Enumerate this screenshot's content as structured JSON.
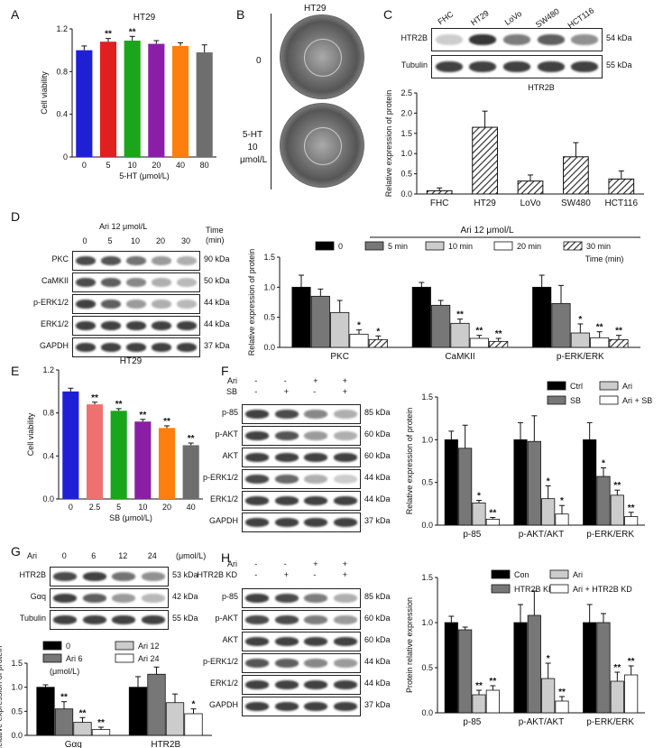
{
  "panels": {
    "A": {
      "label": "A",
      "chart_data": {
        "type": "bar",
        "title": "HT29",
        "xlabel": "5-HT (μmol/L)",
        "ylabel": "Cell viability",
        "categories": [
          "0",
          "5",
          "10",
          "20",
          "40",
          "80"
        ],
        "values": [
          1.0,
          1.08,
          1.09,
          1.06,
          1.04,
          0.98
        ],
        "errors": [
          0.04,
          0.03,
          0.04,
          0.03,
          0.03,
          0.07
        ],
        "significance": [
          "",
          "**",
          "**",
          "",
          "",
          ""
        ],
        "colors": [
          "#1f1fd6",
          "#e02020",
          "#1aa61a",
          "#8a1fa6",
          "#ff7f0e",
          "#6e6e6e"
        ],
        "ylim": [
          0,
          1.2
        ],
        "yticks": [
          "0",
          "0.4",
          "0.8",
          "1.2"
        ]
      }
    },
    "B": {
      "label": "B",
      "title": "HT29",
      "row_top": "0",
      "row_bottom_lines": [
        "5-HT",
        "10",
        "μmol/L"
      ]
    },
    "C": {
      "label": "C",
      "blot": {
        "lanes": [
          "FHC",
          "HT29",
          "LoVo",
          "SW480",
          "HCT116"
        ],
        "rows": [
          {
            "name": "HTR2B",
            "kda": "54 kDa",
            "intensity": [
              0.15,
              0.9,
              0.55,
              0.7,
              0.45
            ]
          },
          {
            "name": "Tubulin",
            "kda": "55 kDa",
            "intensity": [
              0.85,
              0.85,
              0.85,
              0.85,
              0.85
            ]
          }
        ]
      },
      "chart_data": {
        "type": "bar",
        "title": "HTR2B",
        "xlabel": "",
        "ylabel": "Relative expression of protein",
        "categories": [
          "FHC",
          "HT29",
          "LoVo",
          "SW480",
          "HCT116"
        ],
        "values": [
          0.08,
          1.65,
          0.32,
          0.92,
          0.37
        ],
        "errors": [
          0.07,
          0.4,
          0.15,
          0.35,
          0.2
        ],
        "ylim": [
          0,
          2.5
        ],
        "yticks": [
          "0.0",
          "0.5",
          "1.0",
          "1.5",
          "2.0",
          "2.5"
        ]
      }
    },
    "D": {
      "label": "D",
      "blot": {
        "treatment": "Ari 12 μmol/L",
        "time_label": "Time",
        "time_unit": "(min)",
        "lanes": [
          "0",
          "5",
          "10",
          "20",
          "30"
        ],
        "rows": [
          {
            "name": "PKC",
            "kda": "90 kDa",
            "intensity": [
              0.8,
              0.75,
              0.6,
              0.4,
              0.3
            ]
          },
          {
            "name": "CaMKII",
            "kda": "50 kDa",
            "intensity": [
              0.8,
              0.7,
              0.5,
              0.3,
              0.25
            ]
          },
          {
            "name": "p-ERK1/2",
            "kda": "44 kDa",
            "intensity": [
              0.85,
              0.7,
              0.4,
              0.3,
              0.25
            ]
          },
          {
            "name": "ERK1/2",
            "kda": "44 kDa",
            "intensity": [
              0.85,
              0.85,
              0.85,
              0.85,
              0.85
            ]
          },
          {
            "name": "GAPDH",
            "kda": "37 kDa",
            "intensity": [
              0.85,
              0.85,
              0.85,
              0.85,
              0.85
            ]
          }
        ]
      },
      "chart_data": {
        "type": "bar",
        "title": "Ari 12 μmol/L",
        "time_label": "Time (min)",
        "ylabel": "Relative expression of protein",
        "categories": [
          "PKC",
          "CaMKII",
          "p-ERK/ERK"
        ],
        "series": [
          {
            "name": "0",
            "values": [
              1.0,
              1.0,
              1.0
            ],
            "errors": [
              0.2,
              0.08,
              0.2
            ],
            "sig": [
              "",
              "",
              ""
            ],
            "color": "#000000",
            "hatch": false
          },
          {
            "name": "5 min",
            "values": [
              0.85,
              0.7,
              0.73
            ],
            "errors": [
              0.12,
              0.08,
              0.3
            ],
            "sig": [
              "",
              "",
              ""
            ],
            "color": "#777777",
            "hatch": false
          },
          {
            "name": "10 min",
            "values": [
              0.58,
              0.4,
              0.24
            ],
            "errors": [
              0.2,
              0.07,
              0.15
            ],
            "sig": [
              "",
              "**",
              "*"
            ],
            "color": "#cccccc",
            "hatch": false
          },
          {
            "name": "20 min",
            "values": [
              0.22,
              0.15,
              0.16
            ],
            "errors": [
              0.07,
              0.05,
              0.1
            ],
            "sig": [
              "*",
              "**",
              "**"
            ],
            "color": "#ffffff",
            "hatch": false
          },
          {
            "name": "30 min",
            "values": [
              0.13,
              0.1,
              0.13
            ],
            "errors": [
              0.06,
              0.05,
              0.07
            ],
            "sig": [
              "*",
              "**",
              "**"
            ],
            "color": "#444444",
            "hatch": true
          }
        ],
        "ylim": [
          0,
          1.5
        ],
        "yticks": [
          "0.0",
          "0.5",
          "1.0",
          "1.5"
        ]
      }
    },
    "E": {
      "label": "E",
      "chart_data": {
        "type": "bar",
        "title": "HT29",
        "xlabel": "SB (μmol/L)",
        "ylabel": "Cell viability",
        "categories": [
          "0",
          "2.5",
          "5",
          "10",
          "20",
          "40"
        ],
        "values": [
          1.0,
          0.88,
          0.82,
          0.72,
          0.66,
          0.5
        ],
        "errors": [
          0.03,
          0.02,
          0.02,
          0.02,
          0.02,
          0.02
        ],
        "significance": [
          "",
          "**",
          "**",
          "**",
          "**",
          "**"
        ],
        "colors": [
          "#1f1fd6",
          "#f07070",
          "#1aa61a",
          "#8a1fa6",
          "#ff7f0e",
          "#6e6e6e"
        ],
        "ylim": [
          0,
          1.2
        ],
        "yticks": [
          "0.0",
          "0.4",
          "0.8",
          "1.2"
        ]
      }
    },
    "F": {
      "label": "F",
      "blot": {
        "conditions": [
          {
            "name": "Ari",
            "values": [
              "-",
              "-",
              "+",
              "+"
            ]
          },
          {
            "name": "SB",
            "values": [
              "-",
              "+",
              "-",
              "+"
            ]
          }
        ],
        "rows": [
          {
            "name": "p-85",
            "kda": "85 kDa",
            "intensity": [
              0.85,
              0.8,
              0.5,
              0.3
            ]
          },
          {
            "name": "p-AKT",
            "kda": "60 kDa",
            "intensity": [
              0.85,
              0.75,
              0.4,
              0.3
            ]
          },
          {
            "name": "AKT",
            "kda": "60 kDa",
            "intensity": [
              0.85,
              0.85,
              0.85,
              0.85
            ]
          },
          {
            "name": "p-ERK1/2",
            "kda": "44 kDa",
            "intensity": [
              0.8,
              0.65,
              0.3,
              0.15
            ]
          },
          {
            "name": "ERK1/2",
            "kda": "44 kDa",
            "intensity": [
              0.85,
              0.85,
              0.85,
              0.85
            ]
          },
          {
            "name": "GAPDH",
            "kda": "37 kDa",
            "intensity": [
              0.85,
              0.85,
              0.85,
              0.85
            ]
          }
        ]
      },
      "chart_data": {
        "type": "bar",
        "ylabel": "Relative expression of protein",
        "categories": [
          "p-85",
          "p-AKT/AKT",
          "p-ERK/ERK"
        ],
        "series": [
          {
            "name": "Ctrl",
            "values": [
              1.0,
              1.0,
              1.0
            ],
            "errors": [
              0.1,
              0.2,
              0.2
            ],
            "sig": [
              "",
              "",
              ""
            ],
            "color": "#000000"
          },
          {
            "name": "SB",
            "values": [
              0.9,
              0.98,
              0.57
            ],
            "errors": [
              0.27,
              0.3,
              0.1
            ],
            "sig": [
              "",
              "",
              "*"
            ],
            "color": "#777777"
          },
          {
            "name": "Ari",
            "values": [
              0.26,
              0.31,
              0.35
            ],
            "errors": [
              0.03,
              0.15,
              0.06
            ],
            "sig": [
              "*",
              "*",
              "**"
            ],
            "color": "#cccccc"
          },
          {
            "name": "Ari + SB",
            "values": [
              0.07,
              0.13,
              0.1
            ],
            "errors": [
              0.02,
              0.1,
              0.05
            ],
            "sig": [
              "**",
              "*",
              "**"
            ],
            "color": "#ffffff"
          }
        ],
        "ylim": [
          0,
          1.5
        ],
        "yticks": [
          "0.0",
          "0.5",
          "1.0",
          "1.5"
        ]
      }
    },
    "G": {
      "label": "G",
      "blot": {
        "treatment": "Ari",
        "unit": "(μmol/L)",
        "lanes": [
          "0",
          "6",
          "12",
          "24"
        ],
        "rows": [
          {
            "name": "HTR2B",
            "kda": "53 kDa",
            "intensity": [
              0.8,
              0.85,
              0.6,
              0.45
            ]
          },
          {
            "name": "Gαq",
            "kda": "42 kDa",
            "intensity": [
              0.85,
              0.7,
              0.4,
              0.25
            ]
          },
          {
            "name": "Tubulin",
            "kda": "55 kDa",
            "intensity": [
              0.85,
              0.85,
              0.85,
              0.85
            ]
          }
        ]
      },
      "chart_data": {
        "type": "bar",
        "ylabel": "Relative expression of protein",
        "legend_unit": "(μmol/L)",
        "categories": [
          "Gαq",
          "HTR2B"
        ],
        "series": [
          {
            "name": "0",
            "values": [
              1.0,
              1.0
            ],
            "errors": [
              0.05,
              0.22
            ],
            "sig": [
              "",
              ""
            ],
            "color": "#000000"
          },
          {
            "name": "Ari 6",
            "values": [
              0.55,
              1.27
            ],
            "errors": [
              0.15,
              0.15
            ],
            "sig": [
              "**",
              ""
            ],
            "color": "#777777"
          },
          {
            "name": "Ari 12",
            "values": [
              0.27,
              0.68
            ],
            "errors": [
              0.1,
              0.18
            ],
            "sig": [
              "**",
              ""
            ],
            "color": "#cccccc"
          },
          {
            "name": "Ari 24",
            "values": [
              0.12,
              0.45
            ],
            "errors": [
              0.05,
              0.1
            ],
            "sig": [
              "**",
              "*"
            ],
            "color": "#ffffff"
          }
        ],
        "ylim": [
          0,
          1.5
        ],
        "yticks": [
          "0.0",
          "0.5",
          "1.0",
          "1.5"
        ]
      }
    },
    "H": {
      "label": "H",
      "blot": {
        "conditions": [
          {
            "name": "Ari",
            "values": [
              "-",
              "-",
              "+",
              "+"
            ]
          },
          {
            "name": "HTR2B KD",
            "values": [
              "-",
              "+",
              "-",
              "+"
            ]
          }
        ],
        "rows": [
          {
            "name": "p-85",
            "kda": "85 kDa",
            "intensity": [
              0.85,
              0.8,
              0.55,
              0.3
            ]
          },
          {
            "name": "p-AKT",
            "kda": "60 kDa",
            "intensity": [
              0.8,
              0.8,
              0.55,
              0.4
            ]
          },
          {
            "name": "AKT",
            "kda": "60 kDa",
            "intensity": [
              0.85,
              0.85,
              0.85,
              0.85
            ]
          },
          {
            "name": "p-ERK1/2",
            "kda": "44 kDa",
            "intensity": [
              0.75,
              0.7,
              0.5,
              0.4
            ]
          },
          {
            "name": "ERK1/2",
            "kda": "44 kDa",
            "intensity": [
              0.85,
              0.85,
              0.85,
              0.85
            ]
          },
          {
            "name": "GAPDH",
            "kda": "37 kDa",
            "intensity": [
              0.85,
              0.85,
              0.85,
              0.85
            ]
          }
        ]
      },
      "chart_data": {
        "type": "bar",
        "ylabel": "Protein relative expression",
        "categories": [
          "p-85",
          "p-AKT/AKT",
          "p-ERK/ERK"
        ],
        "series": [
          {
            "name": "Con",
            "values": [
              1.0,
              1.0,
              1.0
            ],
            "errors": [
              0.07,
              0.2,
              0.2
            ],
            "sig": [
              "",
              "",
              ""
            ],
            "color": "#000000"
          },
          {
            "name": "HTR2B KD",
            "values": [
              0.92,
              1.08,
              1.0
            ],
            "errors": [
              0.03,
              0.27,
              0.1
            ],
            "sig": [
              "",
              "",
              ""
            ],
            "color": "#777777"
          },
          {
            "name": "Ari",
            "values": [
              0.2,
              0.38,
              0.35
            ],
            "errors": [
              0.05,
              0.17,
              0.1
            ],
            "sig": [
              "**",
              "*",
              "**"
            ],
            "color": "#cccccc"
          },
          {
            "name": "Ari + HTR2B KD",
            "values": [
              0.25,
              0.13,
              0.42
            ],
            "errors": [
              0.05,
              0.05,
              0.1
            ],
            "sig": [
              "**",
              "**",
              "**"
            ],
            "color": "#ffffff"
          }
        ],
        "ylim": [
          0,
          1.5
        ],
        "yticks": [
          "0.0",
          "0.5",
          "1.0",
          "1.5"
        ]
      }
    }
  }
}
